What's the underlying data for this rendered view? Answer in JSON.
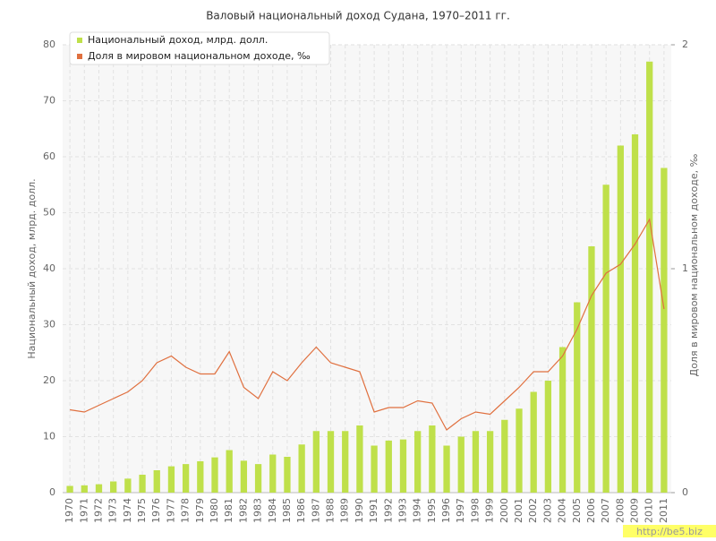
{
  "chart_data": {
    "type": "bar-line",
    "title": "Валовый национальный доход Судана, 1970–2011 гг.",
    "y_label": "Национальный доход, млрд. долл.",
    "y2_label": "Доля в мировом национальном доходе, ‰",
    "watermark": "http://be5.biz",
    "categories": [
      "1970",
      "1971",
      "1972",
      "1973",
      "1974",
      "1975",
      "1976",
      "1977",
      "1978",
      "1979",
      "1980",
      "1981",
      "1982",
      "1983",
      "1984",
      "1985",
      "1986",
      "1987",
      "1988",
      "1989",
      "1990",
      "1991",
      "1992",
      "1993",
      "1994",
      "1995",
      "1996",
      "1997",
      "1998",
      "1999",
      "2000",
      "2001",
      "2002",
      "2003",
      "2004",
      "2005",
      "2006",
      "2007",
      "2008",
      "2009",
      "2010",
      "2011"
    ],
    "series": [
      {
        "name": "Национальный доход, млрд. долл.",
        "color": "#bfe04a",
        "kind": "bar",
        "values": [
          1.2,
          1.3,
          1.5,
          2.0,
          2.5,
          3.2,
          4.0,
          4.7,
          5.1,
          5.6,
          6.3,
          7.6,
          5.7,
          5.1,
          6.8,
          6.4,
          8.6,
          11,
          11,
          11,
          12,
          8.4,
          9.3,
          9.5,
          11,
          12,
          8.4,
          10,
          11,
          11,
          13,
          15,
          18,
          20,
          26,
          34,
          44,
          55,
          62,
          64,
          77,
          58
        ]
      },
      {
        "name": "Доля в мировом национальном доходе, ‰",
        "color": "#e0703f",
        "kind": "line",
        "axis": "y2",
        "values": [
          0.37,
          0.36,
          0.39,
          0.42,
          0.45,
          0.5,
          0.58,
          0.61,
          0.56,
          0.53,
          0.53,
          0.63,
          0.47,
          0.42,
          0.54,
          0.5,
          0.58,
          0.65,
          0.58,
          0.56,
          0.54,
          0.36,
          0.38,
          0.38,
          0.41,
          0.4,
          0.28,
          0.33,
          0.36,
          0.35,
          0.41,
          0.47,
          0.54,
          0.54,
          0.61,
          0.73,
          0.88,
          0.98,
          1.02,
          1.11,
          1.22,
          0.82
        ]
      }
    ],
    "ylim": [
      0,
      80
    ],
    "yticks": [
      0,
      10,
      20,
      30,
      40,
      50,
      60,
      70,
      80
    ],
    "y2lim": [
      0,
      2
    ],
    "y2ticks": [
      0,
      1,
      2
    ],
    "grid": true,
    "legend": "top-left"
  }
}
